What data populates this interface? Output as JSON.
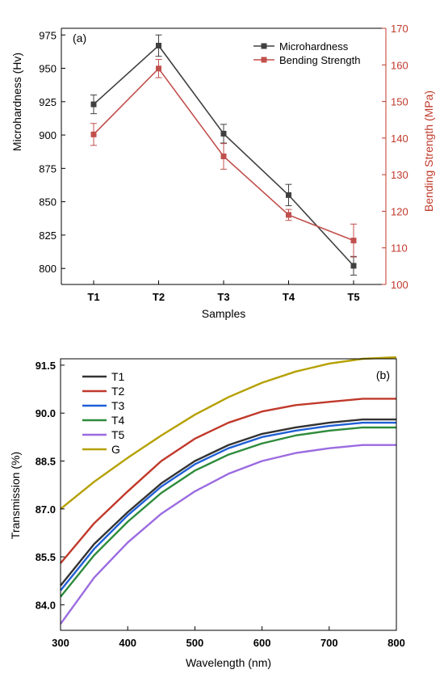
{
  "chart_data": [
    {
      "type": "line",
      "panel_label": "(a)",
      "xlabel": "Samples",
      "ylabel": "Microhardness (Hv)",
      "y2label": "Bending Strength (MPa)",
      "categories": [
        "T1",
        "T2",
        "T3",
        "T4",
        "T5"
      ],
      "ylim": [
        788,
        980
      ],
      "yticks": [
        800,
        825,
        850,
        875,
        900,
        925,
        950,
        975
      ],
      "y2lim": [
        100,
        170
      ],
      "y2ticks": [
        100,
        110,
        120,
        130,
        140,
        150,
        160,
        170
      ],
      "legend_position": "top-right",
      "colors": {
        "left_axis": "#222222",
        "right_axis": "#c0392b"
      },
      "series": [
        {
          "name": "Microhardness",
          "axis": "left",
          "color": "#404040",
          "values": [
            923,
            967,
            901,
            855,
            802
          ],
          "errors": [
            7,
            8,
            7,
            8,
            7
          ]
        },
        {
          "name": "Bending Strength",
          "axis": "right",
          "color": "#c0504d",
          "values": [
            141,
            159,
            135,
            119,
            112
          ],
          "errors": [
            3,
            2.5,
            3.5,
            1.5,
            4.5
          ]
        }
      ]
    },
    {
      "type": "line",
      "panel_label": "(b)",
      "xlabel": "Wavelength (nm)",
      "ylabel": "Transmission (%)",
      "xlim": [
        300,
        800
      ],
      "xticks": [
        300,
        400,
        500,
        600,
        700,
        800
      ],
      "ylim": [
        83.2,
        91.7
      ],
      "yticks": [
        84.0,
        85.5,
        87.0,
        88.5,
        90.0,
        91.5
      ],
      "legend_position": "top-left",
      "x": [
        300,
        350,
        400,
        450,
        500,
        550,
        600,
        650,
        700,
        750,
        800
      ],
      "series": [
        {
          "name": "T1",
          "color": "#333333",
          "values": [
            84.6,
            85.9,
            86.9,
            87.8,
            88.5,
            89.0,
            89.35,
            89.55,
            89.7,
            89.8,
            89.8
          ]
        },
        {
          "name": "T2",
          "color": "#c0392b",
          "values": [
            85.3,
            86.55,
            87.55,
            88.5,
            89.2,
            89.7,
            90.05,
            90.25,
            90.35,
            90.45,
            90.45
          ]
        },
        {
          "name": "T3",
          "color": "#1f5fd6",
          "values": [
            84.45,
            85.75,
            86.8,
            87.7,
            88.4,
            88.9,
            89.25,
            89.45,
            89.6,
            89.7,
            89.7
          ]
        },
        {
          "name": "T4",
          "color": "#2e8b3c",
          "values": [
            84.25,
            85.55,
            86.6,
            87.5,
            88.2,
            88.7,
            89.05,
            89.3,
            89.45,
            89.55,
            89.55
          ]
        },
        {
          "name": "T5",
          "color": "#9b6be0",
          "values": [
            83.4,
            84.85,
            85.95,
            86.85,
            87.55,
            88.1,
            88.5,
            88.75,
            88.9,
            89.0,
            89.0
          ]
        },
        {
          "name": "G",
          "color": "#b5a000",
          "values": [
            87.0,
            87.85,
            88.6,
            89.3,
            89.95,
            90.5,
            90.95,
            91.3,
            91.55,
            91.7,
            91.75
          ]
        }
      ]
    }
  ]
}
